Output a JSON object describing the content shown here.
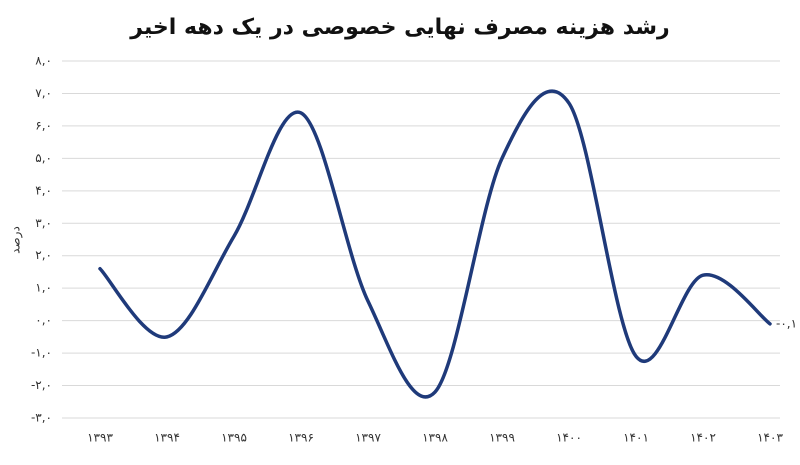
{
  "chart_data": {
    "type": "line",
    "title": "رشد هزینه مصرف نهایی خصوصی در یک دهه اخیر",
    "y_label": "درصد",
    "categories": [
      "۱۳۹۳",
      "۱۳۹۴",
      "۱۳۹۵",
      "۱۳۹۶",
      "۱۳۹۷",
      "۱۳۹۸",
      "۱۳۹۹",
      "۱۴۰۰",
      "۱۴۰۱",
      "۱۴۰۲",
      "۱۴۰۳"
    ],
    "series": [
      {
        "name": "رشد",
        "color": "#1f3a7a",
        "values": [
          1.6,
          -0.5,
          2.6,
          6.4,
          0.6,
          -2.2,
          5.0,
          6.7,
          -1.1,
          1.4,
          -0.1
        ],
        "value_labels": [
          null,
          null,
          null,
          null,
          null,
          null,
          null,
          null,
          null,
          null,
          "-۰,۱"
        ]
      }
    ],
    "ylim": [
      -3,
      8
    ],
    "yticks": [
      {
        "value": -3,
        "label": "-۳,۰"
      },
      {
        "value": -2,
        "label": "-۲,۰"
      },
      {
        "value": -1,
        "label": "-۱,۰"
      },
      {
        "value": 0,
        "label": "۰,۰"
      },
      {
        "value": 1,
        "label": "۱,۰"
      },
      {
        "value": 2,
        "label": "۲,۰"
      },
      {
        "value": 3,
        "label": "۳,۰"
      },
      {
        "value": 4,
        "label": "۴,۰"
      },
      {
        "value": 5,
        "label": "۵,۰"
      },
      {
        "value": 6,
        "label": "۶,۰"
      },
      {
        "value": 7,
        "label": "۷,۰"
      },
      {
        "value": 8,
        "label": "۸,۰"
      }
    ],
    "grid": true
  }
}
